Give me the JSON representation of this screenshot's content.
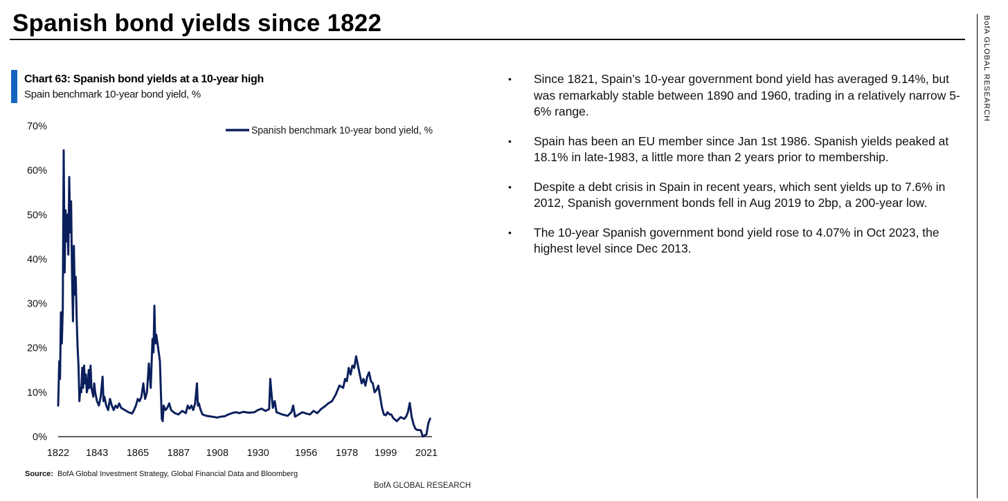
{
  "page": {
    "title": "Spanish bond yields since 1822",
    "side_brand": "BofA GLOBAL RESEARCH",
    "footer_brand": "BofA GLOBAL RESEARCH"
  },
  "chart_panel": {
    "title": "Chart 63: Spanish bond yields at a 10-year high",
    "subtitle": "Spain benchmark 10-year bond yield, %",
    "source_label": "Source:",
    "source_text": "BofA Global Investment Strategy, Global Financial Data and Bloomberg"
  },
  "bullets": [
    "Since 1821, Spain’s 10-year government bond yield has averaged 9.14%, but was remarkably stable between 1890 and 1960, trading in a relatively narrow 5-6% range.",
    "Spain has been an EU member since Jan 1st 1986. Spanish yields peaked at 18.1% in late-1983, a little more than 2 years prior to membership.",
    "Despite a debt crisis in Spain in recent years, which sent yields up to 7.6% in 2012, Spanish government bonds fell in Aug 2019 to 2bp, a 200-year low.",
    "The 10-year Spanish government bond yield rose to 4.07% in Oct 2023, the highest level since Dec 2013."
  ],
  "colors": {
    "line": "#0b1f5c",
    "accent": "#1565c0",
    "axis": "#000000"
  },
  "chart_data": {
    "type": "line",
    "title": "Chart 63: Spanish bond yields at a 10-year high",
    "subtitle": "Spain benchmark 10-year bond yield, %",
    "xlabel": "",
    "ylabel": "",
    "xlim": [
      1822,
      2024
    ],
    "ylim": [
      0,
      70
    ],
    "y_ticks": [
      0,
      10,
      20,
      30,
      40,
      50,
      60,
      70
    ],
    "y_tick_labels": [
      "0%",
      "10%",
      "20%",
      "30%",
      "40%",
      "50%",
      "60%",
      "70%"
    ],
    "x_ticks": [
      1822,
      1843,
      1865,
      1887,
      1908,
      1930,
      1956,
      1978,
      1999,
      2021
    ],
    "x_tick_labels": [
      "1822",
      "1843",
      "1865",
      "1887",
      "1908",
      "1930",
      "1956",
      "1978",
      "1999",
      "2021"
    ],
    "legend": "top-right",
    "grid": false,
    "series": [
      {
        "name": "Spanish benchmark 10-year bond yield, %",
        "points": [
          [
            1822,
            7
          ],
          [
            1822.6,
            17
          ],
          [
            1823,
            13
          ],
          [
            1823.5,
            28
          ],
          [
            1824,
            21
          ],
          [
            1824.5,
            29
          ],
          [
            1825,
            64.5
          ],
          [
            1825.5,
            37
          ],
          [
            1826,
            51
          ],
          [
            1826.5,
            44
          ],
          [
            1827,
            50
          ],
          [
            1827.5,
            41
          ],
          [
            1828,
            58.5
          ],
          [
            1828.5,
            46
          ],
          [
            1829,
            53
          ],
          [
            1829.5,
            37
          ],
          [
            1830,
            26
          ],
          [
            1830.5,
            43
          ],
          [
            1831,
            32
          ],
          [
            1831.5,
            36
          ],
          [
            1832,
            27
          ],
          [
            1832.5,
            20
          ],
          [
            1833,
            16
          ],
          [
            1833.5,
            8
          ],
          [
            1834,
            11
          ],
          [
            1834.5,
            10
          ],
          [
            1835,
            15.5
          ],
          [
            1835.5,
            11
          ],
          [
            1836,
            16
          ],
          [
            1836.5,
            12
          ],
          [
            1837,
            14
          ],
          [
            1837.5,
            10
          ],
          [
            1838,
            11
          ],
          [
            1838.5,
            15
          ],
          [
            1839,
            11
          ],
          [
            1839.5,
            16
          ],
          [
            1840,
            11
          ],
          [
            1841,
            9
          ],
          [
            1841.5,
            12
          ],
          [
            1842,
            10
          ],
          [
            1843,
            8
          ],
          [
            1844,
            7
          ],
          [
            1845,
            9
          ],
          [
            1846,
            13.5
          ],
          [
            1846.5,
            8
          ],
          [
            1847,
            9
          ],
          [
            1848,
            7
          ],
          [
            1849,
            6
          ],
          [
            1850,
            8.5
          ],
          [
            1851,
            7
          ],
          [
            1852,
            6
          ],
          [
            1853,
            7
          ],
          [
            1854,
            6.5
          ],
          [
            1855,
            7.5
          ],
          [
            1856,
            6.5
          ],
          [
            1858,
            6
          ],
          [
            1860,
            5.5
          ],
          [
            1862,
            5.2
          ],
          [
            1863,
            6
          ],
          [
            1864,
            7
          ],
          [
            1865,
            8.5
          ],
          [
            1866,
            8
          ],
          [
            1867,
            9
          ],
          [
            1868,
            12
          ],
          [
            1869,
            8.5
          ],
          [
            1870,
            10
          ],
          [
            1871,
            16.5
          ],
          [
            1872,
            11
          ],
          [
            1873,
            22
          ],
          [
            1873.5,
            19
          ],
          [
            1874,
            29.5
          ],
          [
            1874.5,
            21
          ],
          [
            1875,
            23
          ],
          [
            1876,
            20
          ],
          [
            1877,
            17
          ],
          [
            1877.5,
            10
          ],
          [
            1878,
            4
          ],
          [
            1878.5,
            3.5
          ],
          [
            1879,
            7
          ],
          [
            1880,
            6
          ],
          [
            1881,
            6.5
          ],
          [
            1882,
            7.5
          ],
          [
            1883,
            6
          ],
          [
            1885,
            5.3
          ],
          [
            1887,
            5
          ],
          [
            1889,
            5.8
          ],
          [
            1891,
            5.3
          ],
          [
            1892,
            7
          ],
          [
            1893,
            6.3
          ],
          [
            1894,
            7
          ],
          [
            1895,
            6
          ],
          [
            1896,
            7.5
          ],
          [
            1897,
            12
          ],
          [
            1897.5,
            7
          ],
          [
            1898,
            7.5
          ],
          [
            1899,
            6
          ],
          [
            1900,
            5
          ],
          [
            1902,
            4.7
          ],
          [
            1905,
            4.5
          ],
          [
            1908,
            4.3
          ],
          [
            1910,
            4.5
          ],
          [
            1912,
            4.6
          ],
          [
            1914,
            5
          ],
          [
            1916,
            5.3
          ],
          [
            1918,
            5.5
          ],
          [
            1920,
            5.3
          ],
          [
            1922,
            5.6
          ],
          [
            1925,
            5.4
          ],
          [
            1928,
            5.5
          ],
          [
            1930,
            6
          ],
          [
            1932,
            6.3
          ],
          [
            1934,
            5.8
          ],
          [
            1936,
            6.2
          ],
          [
            1936.6,
            13
          ],
          [
            1937.2,
            10
          ],
          [
            1938,
            6.5
          ],
          [
            1939,
            8
          ],
          [
            1940,
            5.5
          ],
          [
            1943,
            5
          ],
          [
            1946,
            4.7
          ],
          [
            1948,
            5.5
          ],
          [
            1949,
            7
          ],
          [
            1950,
            4.5
          ],
          [
            1952,
            5
          ],
          [
            1954,
            5.5
          ],
          [
            1956,
            5.2
          ],
          [
            1958,
            5
          ],
          [
            1960,
            5.8
          ],
          [
            1962,
            5.3
          ],
          [
            1964,
            6.2
          ],
          [
            1966,
            6.8
          ],
          [
            1968,
            7.5
          ],
          [
            1970,
            8
          ],
          [
            1972,
            9.5
          ],
          [
            1974,
            11.5
          ],
          [
            1976,
            11
          ],
          [
            1977,
            13
          ],
          [
            1978,
            12.5
          ],
          [
            1979,
            15.5
          ],
          [
            1980,
            14
          ],
          [
            1981,
            16
          ],
          [
            1982,
            15.5
          ],
          [
            1983,
            18.1
          ],
          [
            1984,
            16
          ],
          [
            1985,
            14
          ],
          [
            1986,
            12
          ],
          [
            1987,
            13
          ],
          [
            1988,
            11.5
          ],
          [
            1989,
            13.5
          ],
          [
            1990,
            14.5
          ],
          [
            1991,
            12.5
          ],
          [
            1992,
            12
          ],
          [
            1993,
            10
          ],
          [
            1994,
            10.5
          ],
          [
            1995,
            11.5
          ],
          [
            1996,
            9
          ],
          [
            1997,
            6.5
          ],
          [
            1998,
            5
          ],
          [
            1999,
            4.8
          ],
          [
            2000,
            5.5
          ],
          [
            2001,
            5
          ],
          [
            2002,
            5
          ],
          [
            2003,
            4.2
          ],
          [
            2005,
            3.5
          ],
          [
            2007,
            4.4
          ],
          [
            2008,
            4.2
          ],
          [
            2009,
            4
          ],
          [
            2010,
            4.5
          ],
          [
            2011,
            5.5
          ],
          [
            2012,
            7.6
          ],
          [
            2013,
            4.5
          ],
          [
            2014,
            2.8
          ],
          [
            2015,
            1.8
          ],
          [
            2016,
            1.5
          ],
          [
            2017,
            1.5
          ],
          [
            2018,
            1.4
          ],
          [
            2019,
            0.02
          ],
          [
            2020,
            0.3
          ],
          [
            2021,
            0.5
          ],
          [
            2022,
            3
          ],
          [
            2023,
            4.07
          ]
        ]
      }
    ]
  }
}
